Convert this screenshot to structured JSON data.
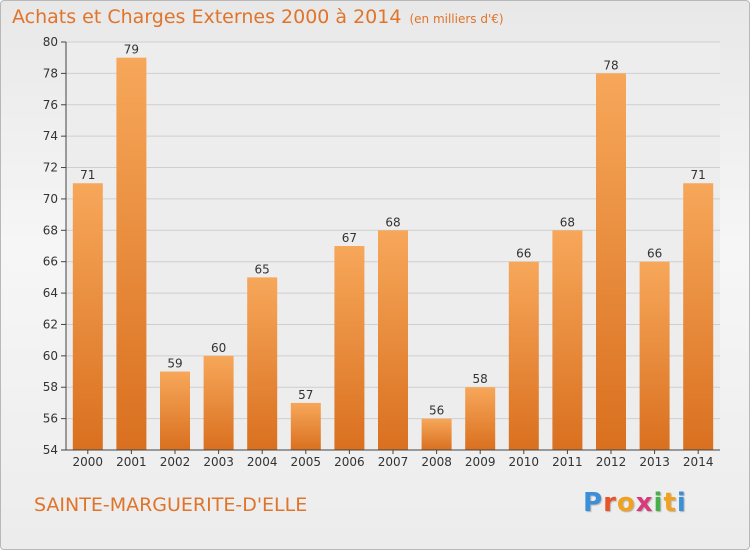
{
  "header": {
    "title": "Achats et Charges Externes 2000 à 2014",
    "unit": "(en milliers d'€)"
  },
  "footer": {
    "commune": "SAINTE-MARGUERITE-D'ELLE",
    "logo_letters": [
      "P",
      "r",
      "o",
      "x",
      "i",
      "t",
      "i"
    ],
    "logo_colors": [
      "#3b8fd8",
      "#e8552b",
      "#f2a11f",
      "#d83a7c",
      "#47b04b",
      "#f2a11f",
      "#3b8fd8"
    ]
  },
  "colors": {
    "bar_light": "#f7a75a",
    "bar_dark": "#d9701f",
    "text": "#e0742a"
  },
  "chart_data": {
    "type": "bar",
    "categories": [
      "2000",
      "2001",
      "2002",
      "2003",
      "2004",
      "2005",
      "2006",
      "2007",
      "2008",
      "2009",
      "2010",
      "2011",
      "2012",
      "2013",
      "2014"
    ],
    "values": [
      71,
      79,
      59,
      60,
      65,
      57,
      67,
      68,
      56,
      58,
      66,
      68,
      78,
      66,
      71
    ],
    "ylim": [
      54,
      80
    ],
    "yticks": [
      54,
      56,
      58,
      60,
      62,
      64,
      66,
      68,
      70,
      72,
      74,
      76,
      78,
      80
    ],
    "grid": true,
    "data_labels": true
  }
}
